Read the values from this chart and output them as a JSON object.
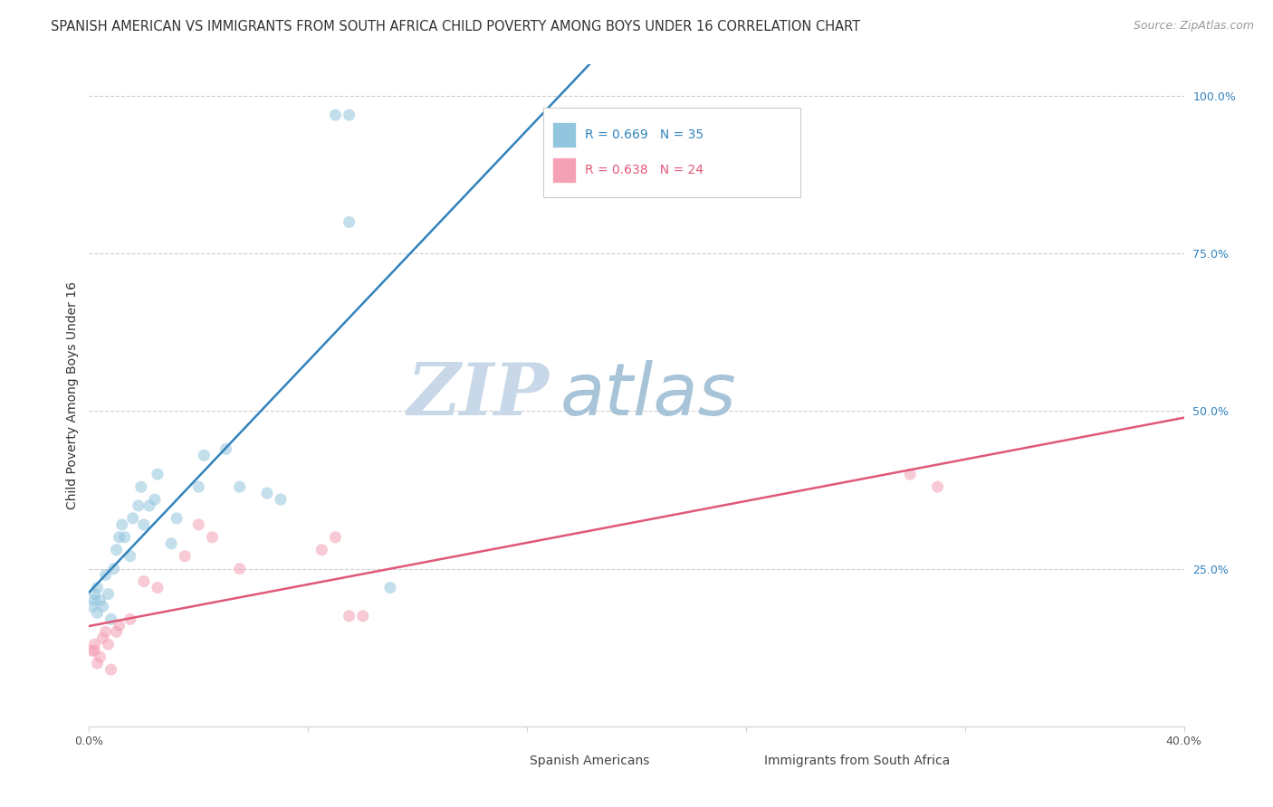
{
  "title": "SPANISH AMERICAN VS IMMIGRANTS FROM SOUTH AFRICA CHILD POVERTY AMONG BOYS UNDER 16 CORRELATION CHART",
  "source": "Source: ZipAtlas.com",
  "ylabel": "Child Poverty Among Boys Under 16",
  "ytick_values": [
    0.0,
    0.25,
    0.5,
    0.75,
    1.0
  ],
  "ytick_labels": [
    "",
    "25.0%",
    "50.0%",
    "75.0%",
    "100.0%"
  ],
  "xlim": [
    0.0,
    0.4
  ],
  "ylim": [
    0.0,
    1.05
  ],
  "watermark_zip": "ZIP",
  "watermark_atlas": "atlas",
  "blue_R": 0.669,
  "blue_N": 35,
  "pink_R": 0.638,
  "pink_N": 24,
  "blue_color": "#92c5de",
  "pink_color": "#f4a0b5",
  "blue_line_color": "#3182bd",
  "pink_line_color": "#e05878",
  "legend_blue_label": "Spanish Americans",
  "legend_pink_label": "Immigrants from South Africa",
  "blue_scatter_x": [
    0.001,
    0.002,
    0.002,
    0.003,
    0.003,
    0.004,
    0.005,
    0.006,
    0.007,
    0.008,
    0.009,
    0.01,
    0.011,
    0.012,
    0.013,
    0.015,
    0.016,
    0.018,
    0.019,
    0.02,
    0.022,
    0.024,
    0.025,
    0.03,
    0.032,
    0.04,
    0.042,
    0.05,
    0.055,
    0.065,
    0.07,
    0.09,
    0.095,
    0.095,
    0.11
  ],
  "blue_scatter_y": [
    0.19,
    0.21,
    0.2,
    0.22,
    0.18,
    0.2,
    0.19,
    0.24,
    0.21,
    0.17,
    0.25,
    0.28,
    0.3,
    0.32,
    0.3,
    0.27,
    0.33,
    0.35,
    0.38,
    0.32,
    0.35,
    0.36,
    0.4,
    0.29,
    0.33,
    0.38,
    0.43,
    0.44,
    0.38,
    0.37,
    0.36,
    0.97,
    0.97,
    0.8,
    0.22
  ],
  "pink_scatter_x": [
    0.001,
    0.002,
    0.002,
    0.003,
    0.004,
    0.005,
    0.006,
    0.007,
    0.008,
    0.01,
    0.011,
    0.015,
    0.02,
    0.025,
    0.035,
    0.04,
    0.045,
    0.055,
    0.085,
    0.09,
    0.095,
    0.1,
    0.3,
    0.31
  ],
  "pink_scatter_y": [
    0.12,
    0.12,
    0.13,
    0.1,
    0.11,
    0.14,
    0.15,
    0.13,
    0.09,
    0.15,
    0.16,
    0.17,
    0.23,
    0.22,
    0.27,
    0.32,
    0.3,
    0.25,
    0.28,
    0.3,
    0.175,
    0.175,
    0.4,
    0.38
  ],
  "grid_color": "#d0d0d0",
  "background_color": "#ffffff",
  "title_fontsize": 10.5,
  "source_fontsize": 9,
  "axis_label_fontsize": 10,
  "tick_fontsize": 9,
  "legend_fontsize": 10,
  "watermark_fontsize_zip": 58,
  "watermark_fontsize_atlas": 58,
  "watermark_color_zip": "#c8d8e8",
  "watermark_color_atlas": "#a8c4d8",
  "scatter_size": 90,
  "scatter_alpha": 0.55,
  "line_width": 1.8
}
